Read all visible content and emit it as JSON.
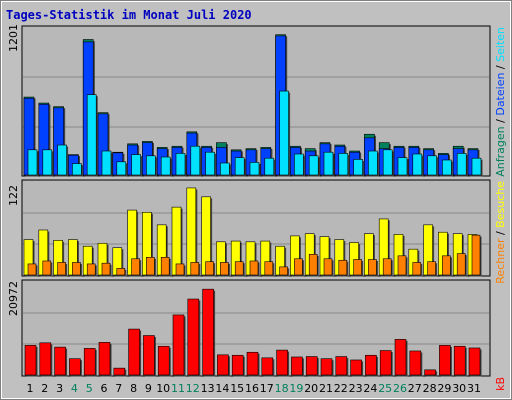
{
  "title": "Tages-Statistik im Monat Juli 2020",
  "colors": {
    "background": "#c0c0c0",
    "panel": "#b8b8b8",
    "grid": "#888888",
    "anfragen": "#00805c",
    "dateien": "#0040ff",
    "seiten": "#00e0ff",
    "besuche": "#ffff00",
    "rechner": "#ff8000",
    "kb": "#ff0000",
    "weekday": "#000000",
    "weekend": "#00805c"
  },
  "days": [
    "1",
    "2",
    "3",
    "4",
    "5",
    "6",
    "7",
    "8",
    "9",
    "10",
    "11",
    "12",
    "13",
    "14",
    "15",
    "16",
    "17",
    "18",
    "19",
    "20",
    "21",
    "22",
    "23",
    "24",
    "25",
    "26",
    "27",
    "28",
    "29",
    "30",
    "31"
  ],
  "weekend_days": [
    "4",
    "5",
    "11",
    "12",
    "18",
    "19",
    "25",
    "26"
  ],
  "side_labels": {
    "top": [
      {
        "text": "Anfragen",
        "color": "#00805c"
      },
      {
        "text": " / ",
        "color": "#000000"
      },
      {
        "text": "Dateien",
        "color": "#0040ff"
      },
      {
        "text": " / ",
        "color": "#000000"
      },
      {
        "text": "Seiten",
        "color": "#00e0ff"
      }
    ],
    "middle": [
      {
        "text": "Rechner",
        "color": "#ff8000"
      },
      {
        "text": " / ",
        "color": "#000000"
      },
      {
        "text": "Besuche",
        "color": "#ffff00"
      }
    ],
    "bottom": [
      {
        "text": "kB",
        "color": "#ff0000"
      }
    ]
  },
  "chart_data": [
    {
      "type": "bar",
      "ymax_label": "1201",
      "ylim": [
        0,
        1201
      ],
      "categories": [
        "1",
        "2",
        "3",
        "4",
        "5",
        "6",
        "7",
        "8",
        "9",
        "10",
        "11",
        "12",
        "13",
        "14",
        "15",
        "16",
        "17",
        "18",
        "19",
        "20",
        "21",
        "22",
        "23",
        "24",
        "25",
        "26",
        "27",
        "28",
        "29",
        "30",
        "31"
      ],
      "series": [
        {
          "name": "Anfragen",
          "values": [
            650,
            600,
            570,
            170,
            1130,
            520,
            190,
            260,
            280,
            230,
            240,
            360,
            240,
            270,
            210,
            220,
            230,
            1170,
            240,
            220,
            270,
            250,
            200,
            340,
            270,
            240,
            240,
            220,
            180,
            240,
            220
          ]
        },
        {
          "name": "Dateien",
          "values": [
            640,
            590,
            560,
            165,
            1110,
            510,
            185,
            250,
            270,
            220,
            230,
            350,
            230,
            230,
            200,
            210,
            220,
            1160,
            230,
            200,
            260,
            240,
            190,
            310,
            220,
            230,
            230,
            210,
            170,
            220,
            210
          ]
        },
        {
          "name": "Seiten",
          "values": [
            210,
            210,
            250,
            95,
            670,
            200,
            110,
            170,
            160,
            150,
            180,
            240,
            190,
            100,
            145,
            105,
            140,
            700,
            175,
            160,
            190,
            180,
            130,
            200,
            210,
            145,
            175,
            160,
            125,
            180,
            140
          ]
        }
      ]
    },
    {
      "type": "bar",
      "ymax_label": "122",
      "ylim": [
        0,
        122
      ],
      "categories": [
        "1",
        "2",
        "3",
        "4",
        "5",
        "6",
        "7",
        "8",
        "9",
        "10",
        "11",
        "12",
        "13",
        "14",
        "15",
        "16",
        "17",
        "18",
        "19",
        "20",
        "21",
        "22",
        "23",
        "24",
        "25",
        "26",
        "27",
        "28",
        "29",
        "30",
        "31"
      ],
      "series": [
        {
          "name": "Besuche",
          "values": [
            48,
            61,
            47,
            48,
            39,
            43,
            37,
            88,
            85,
            68,
            92,
            118,
            106,
            45,
            46,
            45,
            46,
            39,
            53,
            56,
            52,
            48,
            44,
            56,
            76,
            55,
            35,
            68,
            58,
            56,
            55
          ]
        },
        {
          "name": "Rechner",
          "values": [
            15,
            19,
            17,
            17,
            15,
            16,
            9,
            22,
            24,
            24,
            15,
            17,
            18,
            17,
            18,
            19,
            18,
            11,
            22,
            28,
            22,
            20,
            21,
            21,
            22,
            26,
            17,
            18,
            26,
            29,
            54
          ]
        }
      ]
    },
    {
      "type": "bar",
      "ymax_label": "20972",
      "ylim": [
        0,
        20972
      ],
      "categories": [
        "1",
        "2",
        "3",
        "4",
        "5",
        "6",
        "7",
        "8",
        "9",
        "10",
        "11",
        "12",
        "13",
        "14",
        "15",
        "16",
        "17",
        "18",
        "19",
        "20",
        "21",
        "22",
        "23",
        "24",
        "25",
        "26",
        "27",
        "28",
        "29",
        "30",
        "31"
      ],
      "series": [
        {
          "name": "kB",
          "values": [
            6900,
            7500,
            6500,
            3800,
            6200,
            7600,
            1600,
            10700,
            9200,
            6700,
            14000,
            17700,
            20000,
            4700,
            4600,
            5300,
            4000,
            5800,
            4200,
            4300,
            3800,
            4300,
            3500,
            4600,
            5700,
            8300,
            5600,
            1200,
            6900,
            6700,
            6300
          ]
        }
      ]
    }
  ]
}
